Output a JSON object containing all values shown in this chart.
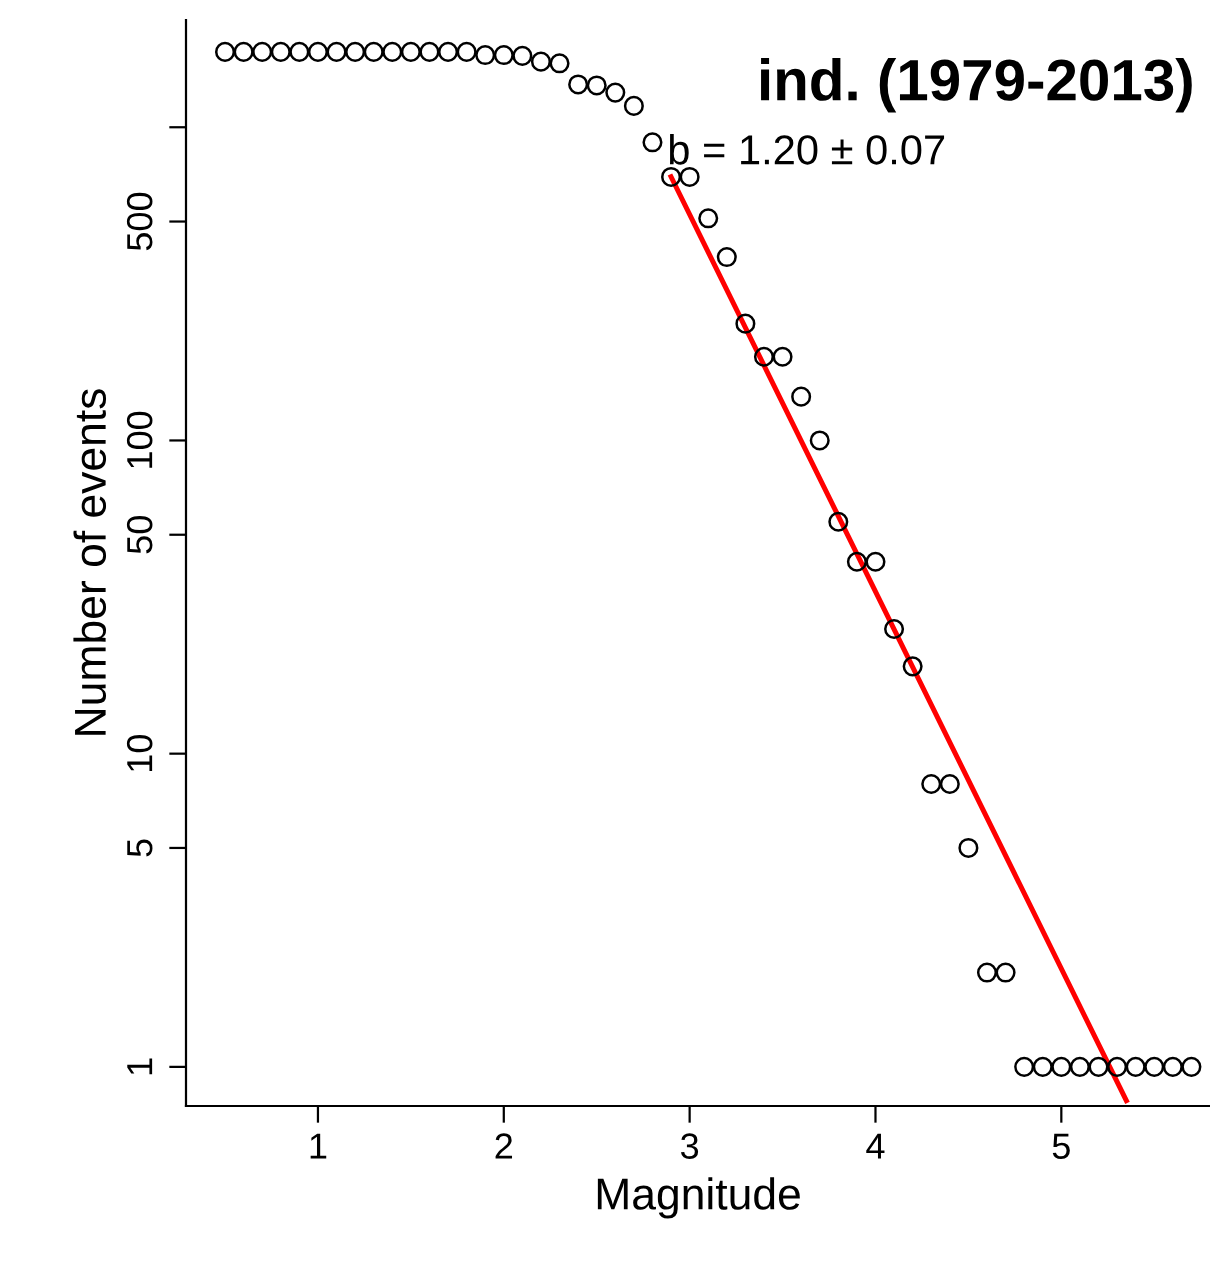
{
  "chart_data": {
    "type": "scatter",
    "title": "ind. (1979-2013)",
    "xlabel": "Magnitude",
    "ylabel": "Number of events",
    "log": "y",
    "grid": false,
    "annotations": [
      "b = 1.20 ± 0.07"
    ],
    "xlim": [
      0.29,
      5.8
    ],
    "xticks": [
      1,
      2,
      3,
      4,
      5
    ],
    "ylim": [
      0.75,
      2200
    ],
    "yticks": [
      1,
      5,
      10,
      50,
      100,
      500,
      {
        "value": 1000,
        "label": null
      }
    ],
    "series": [
      {
        "marker": "circle",
        "color": "#000000",
        "x": [
          0.5,
          0.6,
          0.7,
          0.8,
          0.9,
          1.0,
          1.1,
          1.2,
          1.3,
          1.4,
          1.5,
          1.6,
          1.7,
          1.8,
          1.9,
          2.0,
          2.1,
          2.2,
          2.3,
          2.4,
          2.5,
          2.6,
          2.7,
          2.8,
          2.9,
          3.0,
          3.1,
          3.2,
          3.3,
          3.4,
          3.5,
          3.6,
          3.7,
          3.8,
          3.9,
          4.0,
          4.1,
          4.2,
          4.3,
          4.4,
          4.5,
          4.6,
          4.7,
          4.8,
          4.9,
          5.0,
          5.1,
          5.2,
          5.3,
          5.4,
          5.5,
          5.6,
          5.7
        ],
        "values": [
          1740,
          1740,
          1740,
          1740,
          1740,
          1740,
          1740,
          1740,
          1740,
          1740,
          1740,
          1740,
          1740,
          1740,
          1700,
          1700,
          1690,
          1620,
          1600,
          1370,
          1360,
          1290,
          1170,
          895,
          694,
          694,
          512,
          385,
          236,
          185,
          185,
          138,
          100,
          55,
          41,
          41,
          25,
          19,
          8,
          8,
          5,
          2,
          2,
          1,
          1,
          1,
          1,
          1,
          1,
          1,
          1,
          1,
          1
        ]
      },
      {
        "type": "line",
        "marker": "none",
        "color": "#ff0000",
        "x": [
          2.9,
          5.35
        ],
        "values": [
          695,
          0.78
        ]
      }
    ]
  }
}
